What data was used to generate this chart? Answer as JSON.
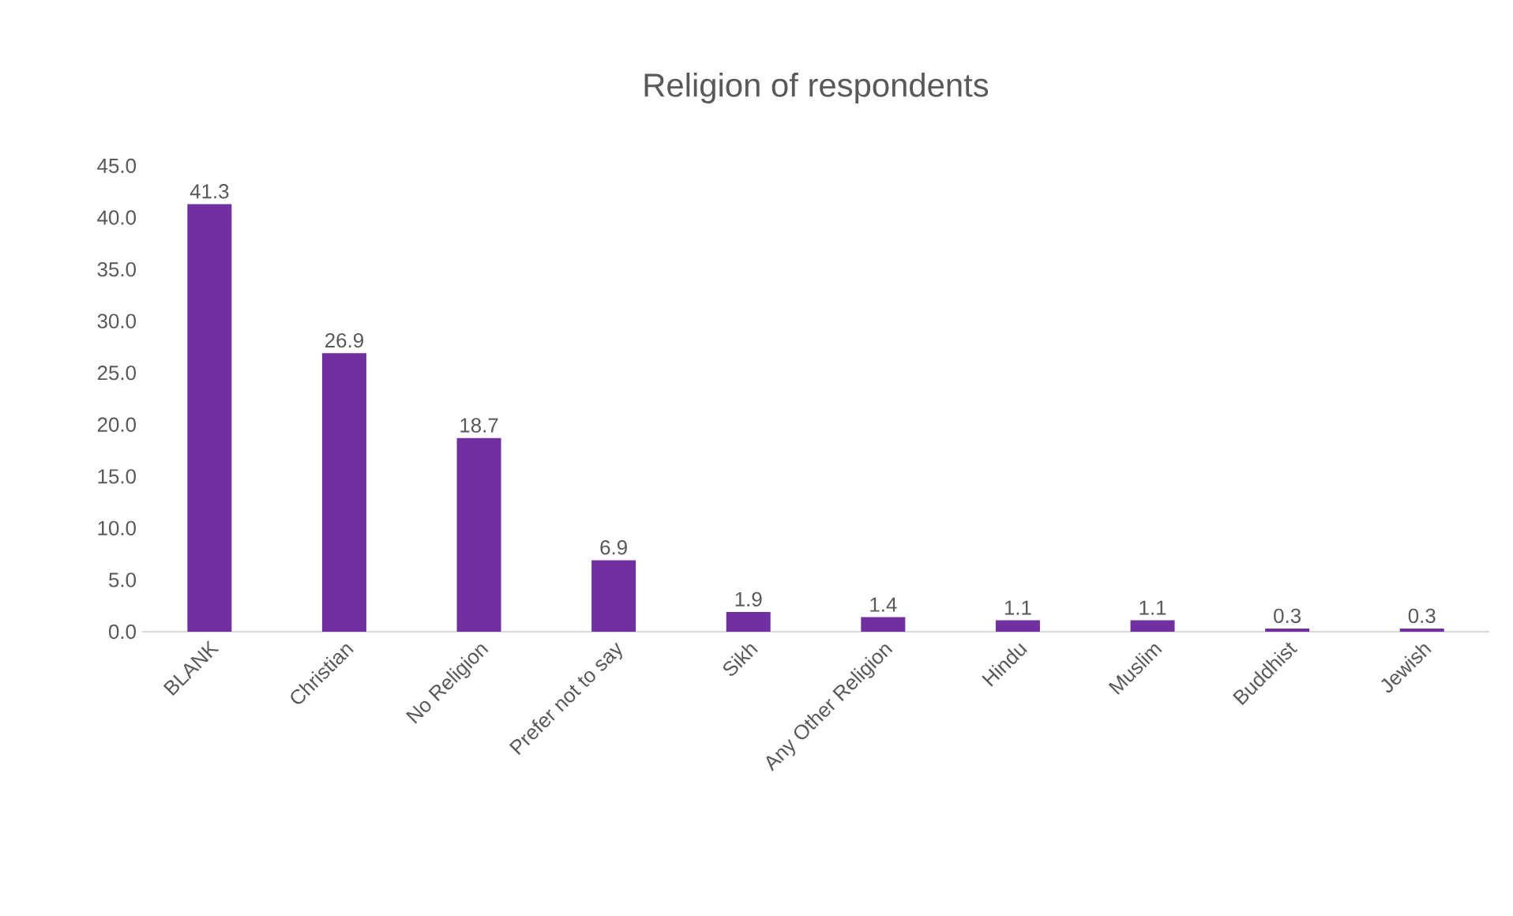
{
  "chart_data": {
    "type": "bar",
    "title": "Religion of respondents",
    "categories": [
      "BLANK",
      "Christian",
      "No Religion",
      "Prefer not to say",
      "Sikh",
      "Any Other Religion",
      "Hindu",
      "Muslim",
      "Buddhist",
      "Jewish"
    ],
    "values": [
      41.3,
      26.9,
      18.7,
      6.9,
      1.9,
      1.4,
      1.1,
      1.1,
      0.3,
      0.3
    ],
    "value_labels": [
      "41.3",
      "26.9",
      "18.7",
      "6.9",
      "1.9",
      "1.4",
      "1.1",
      "1.1",
      "0.3",
      "0.3"
    ],
    "color": "#7030a0",
    "ylim": [
      0,
      45
    ],
    "yticks": [
      {
        "value": 0,
        "label": "0.0"
      },
      {
        "value": 5,
        "label": "5.0"
      },
      {
        "value": 10,
        "label": "10.0"
      },
      {
        "value": 15,
        "label": "15.0"
      },
      {
        "value": 20,
        "label": "20.0"
      },
      {
        "value": 25,
        "label": "25.0"
      },
      {
        "value": 30,
        "label": "30.0"
      },
      {
        "value": 35,
        "label": "35.0"
      },
      {
        "value": 40,
        "label": "40.0"
      },
      {
        "value": 45,
        "label": "45.0"
      }
    ]
  }
}
